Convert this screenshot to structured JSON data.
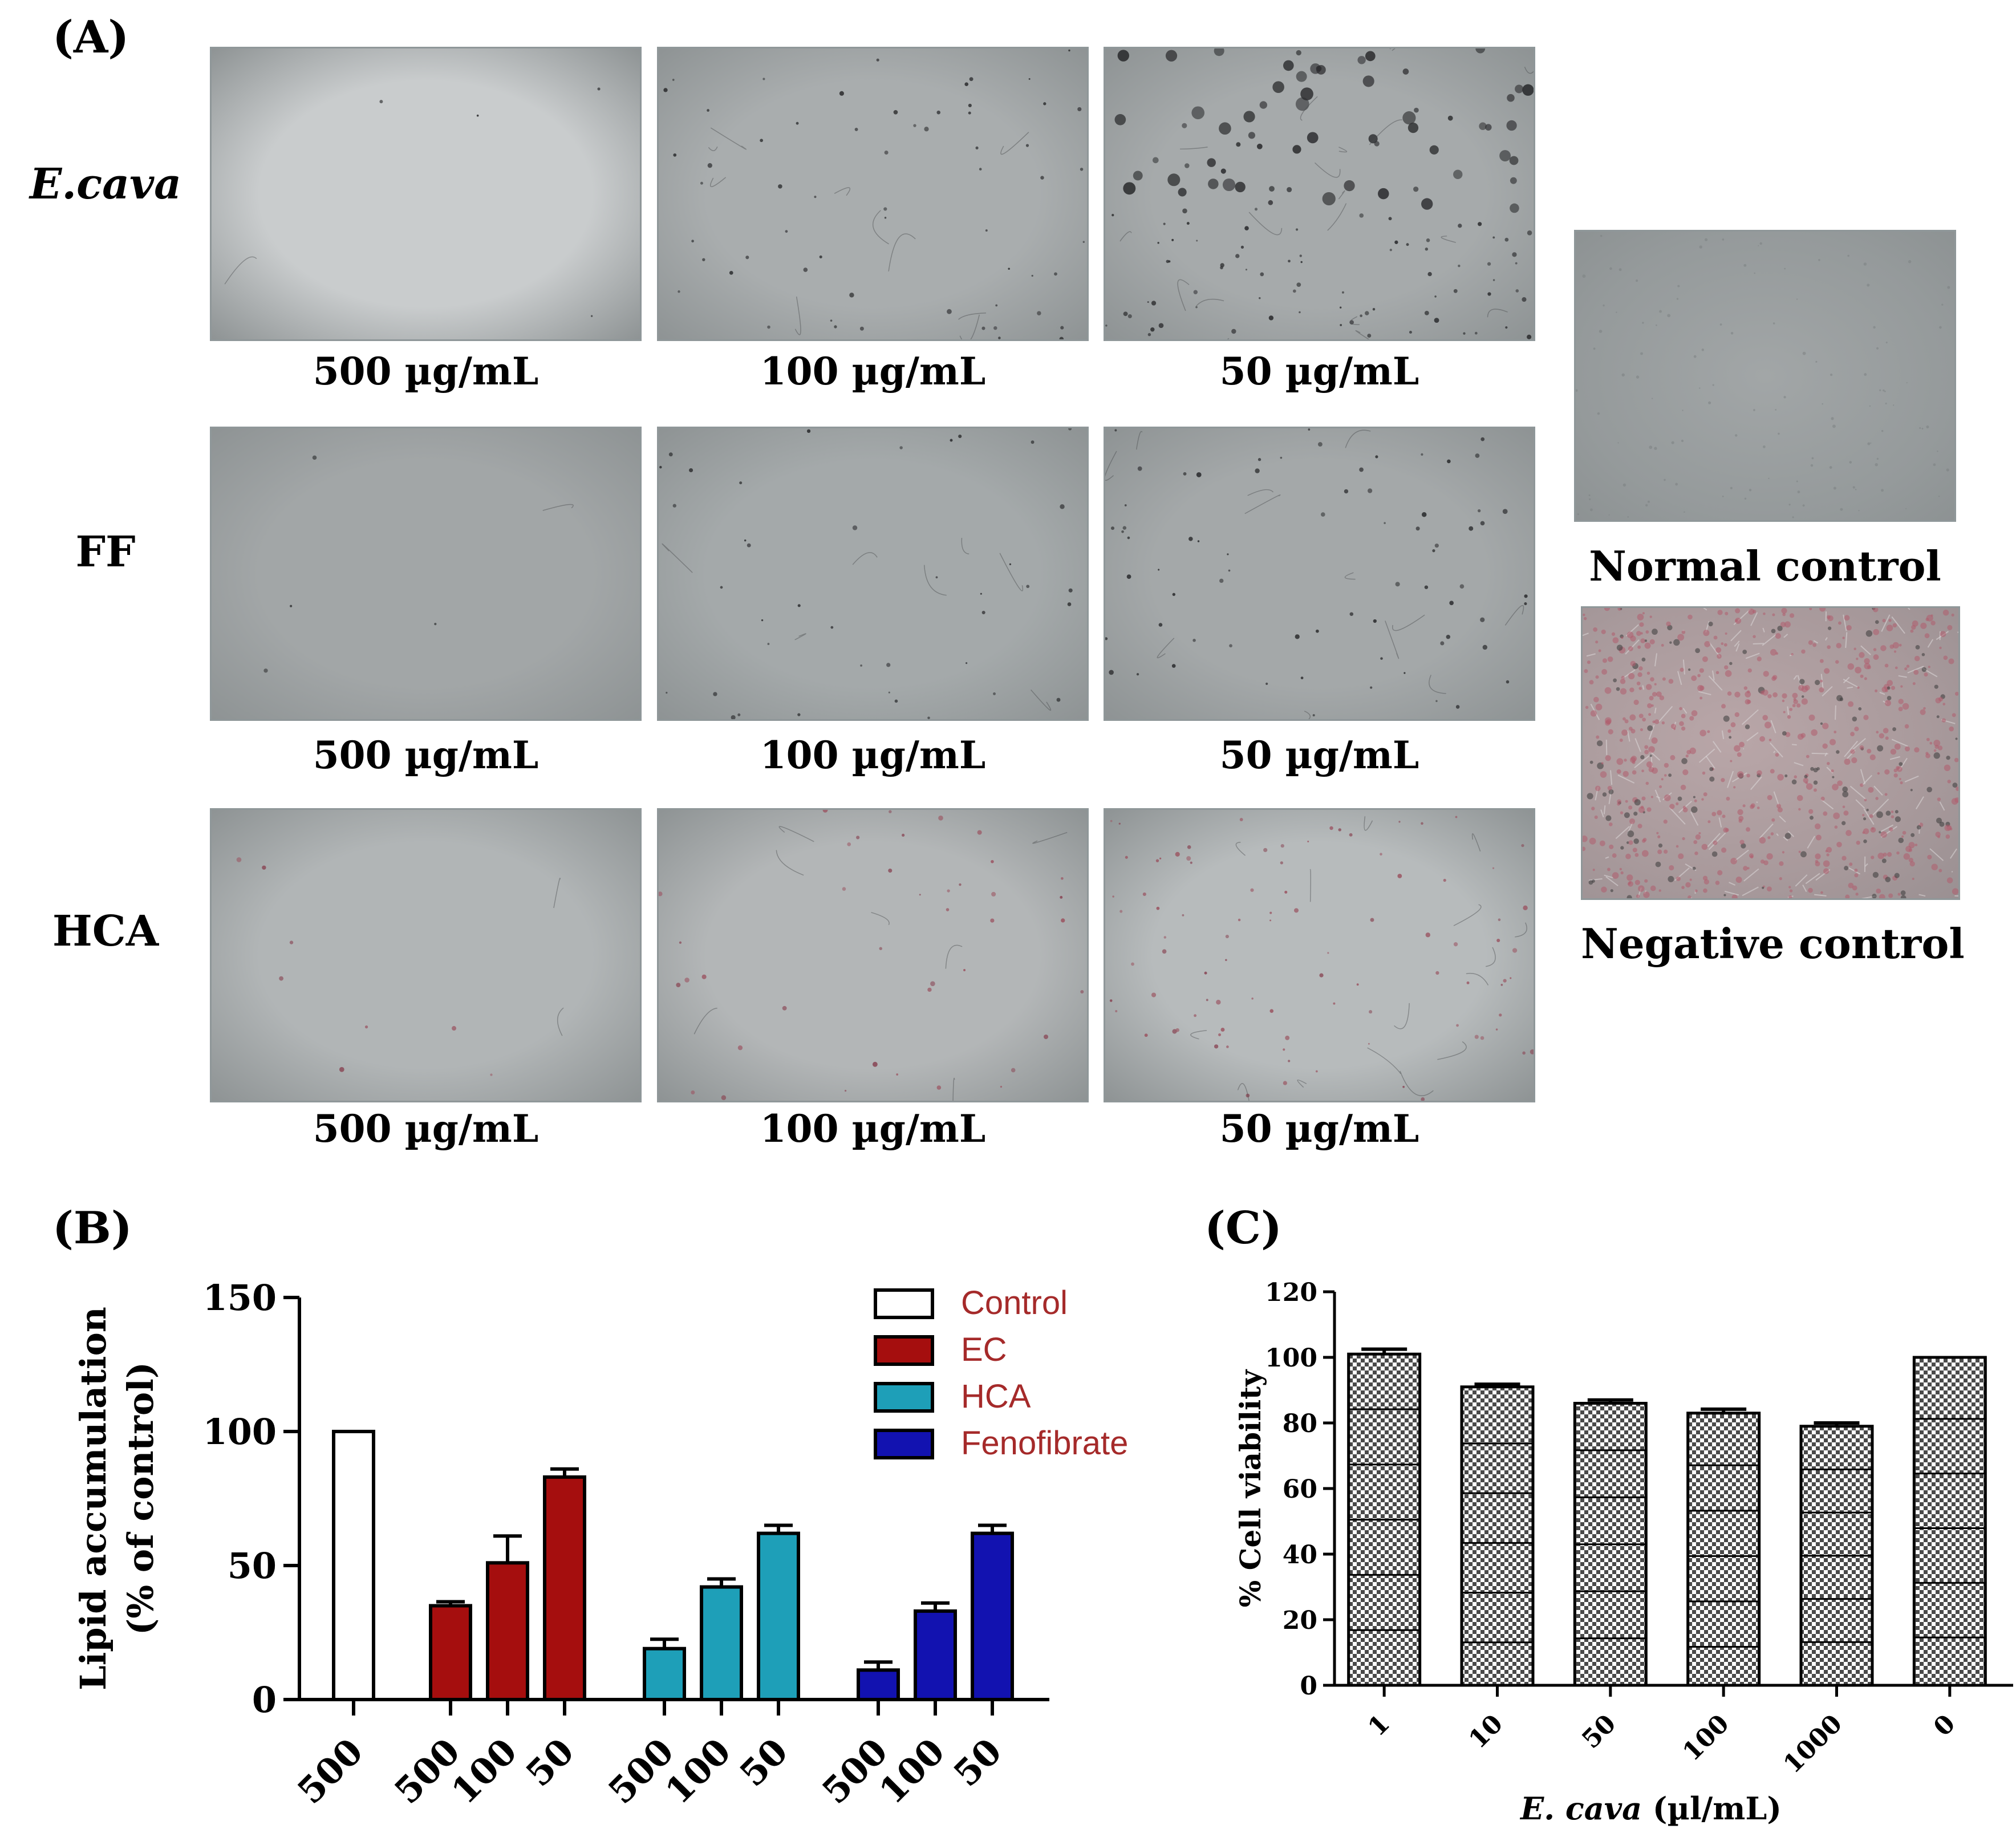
{
  "panel_a": {
    "letter": "(A)",
    "rows": [
      {
        "label": "E.cava",
        "italic": true,
        "concentrations": [
          "500 µg/mL",
          "100 µg/mL",
          "50 µg/mL"
        ]
      },
      {
        "label": "FF",
        "italic": false,
        "concentrations": [
          "500 µg/mL",
          "100 µg/mL",
          "50 µg/mL"
        ]
      },
      {
        "label": "HCA",
        "italic": false,
        "concentrations": [
          "500 µg/mL",
          "100 µg/mL",
          "50 µg/mL"
        ]
      }
    ],
    "normal_control": "Normal control",
    "negative_control": "Negative control"
  },
  "panel_b": {
    "letter": "(B)"
  },
  "panel_c": {
    "letter": "(C)"
  },
  "chart_data": [
    {
      "type": "bar",
      "ylabel_line1": "Lipid accumulation",
      "ylabel_line2": "(% of control)",
      "ylim": [
        0,
        150
      ],
      "yticks": [
        0,
        50,
        100,
        150
      ],
      "legend_position": "top-right",
      "series": [
        {
          "name": "Control",
          "color": "#ffffff",
          "categories": [
            "500"
          ],
          "values": [
            100
          ],
          "errors": [
            0
          ]
        },
        {
          "name": "EC",
          "color": "#a50e0e",
          "categories": [
            "500",
            "100",
            "50"
          ],
          "values": [
            35,
            51,
            83
          ],
          "errors": [
            1.5,
            10,
            3
          ]
        },
        {
          "name": "HCA",
          "color": "#1e9fb8",
          "categories": [
            "500",
            "100",
            "50"
          ],
          "values": [
            19,
            42,
            62
          ],
          "errors": [
            3.5,
            3,
            3
          ]
        },
        {
          "name": "Fenofibrate",
          "color": "#1212b0",
          "categories": [
            "500",
            "100",
            "50"
          ],
          "values": [
            11,
            33,
            62
          ],
          "errors": [
            3,
            3,
            3
          ]
        }
      ]
    },
    {
      "type": "bar",
      "ylabel": "% Cell viability",
      "xlabel_italic": "E. cava",
      "xlabel_rest": " (µl/mL)",
      "ylim": [
        0,
        120
      ],
      "yticks": [
        0,
        20,
        40,
        60,
        80,
        100,
        120
      ],
      "categories": [
        "1",
        "10",
        "50",
        "100",
        "1000",
        "0"
      ],
      "values": [
        101,
        91,
        86,
        83,
        79,
        100
      ],
      "errors": [
        1.5,
        0.8,
        1,
        1.2,
        1,
        0
      ]
    }
  ]
}
